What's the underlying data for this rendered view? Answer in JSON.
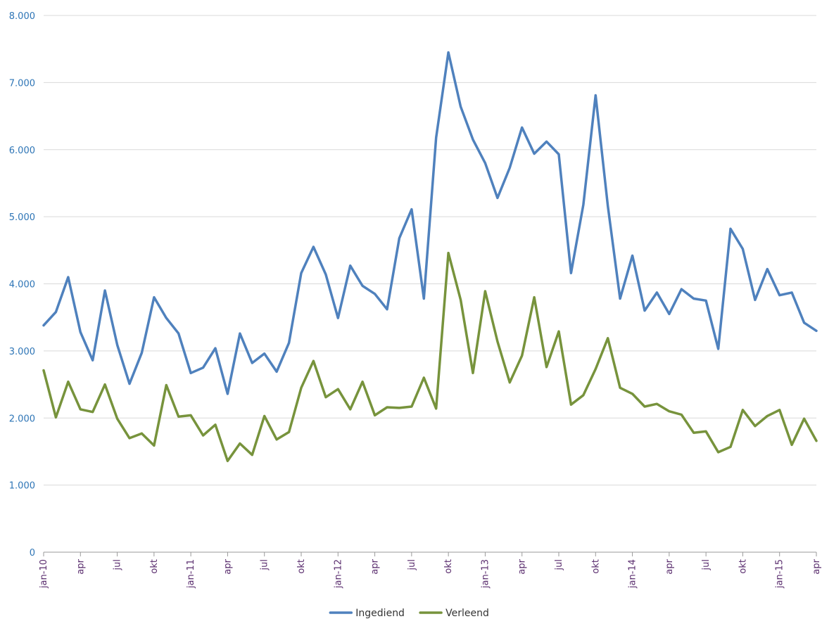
{
  "chart_data": {
    "type": "line",
    "title": "",
    "xlabel": "",
    "ylabel": "",
    "ylim": [
      0,
      8000
    ],
    "yticks": [
      0,
      1000,
      2000,
      3000,
      4000,
      5000,
      6000,
      7000,
      8000
    ],
    "ytick_labels": [
      "0",
      "1.000",
      "2.000",
      "3.000",
      "4.000",
      "5.000",
      "6.000",
      "7.000",
      "8.000"
    ],
    "categories": [
      "jan-10",
      "feb-10",
      "mrt-10",
      "apr-10",
      "mei-10",
      "jun-10",
      "jul-10",
      "aug-10",
      "sep-10",
      "okt-10",
      "nov-10",
      "dec-10",
      "jan-11",
      "feb-11",
      "mrt-11",
      "apr-11",
      "mei-11",
      "jun-11",
      "jul-11",
      "aug-11",
      "sep-11",
      "okt-11",
      "nov-11",
      "dec-11",
      "jan-12",
      "feb-12",
      "mrt-12",
      "apr-12",
      "mei-12",
      "jun-12",
      "jul-12",
      "aug-12",
      "sep-12",
      "okt-12",
      "nov-12",
      "dec-12",
      "jan-13",
      "feb-13",
      "mrt-13",
      "apr-13",
      "mei-13",
      "jun-13",
      "jul-13",
      "aug-13",
      "sep-13",
      "okt-13",
      "nov-13",
      "dec-13",
      "jan-14",
      "feb-14",
      "mrt-14",
      "apr-14",
      "mei-14",
      "jun-14",
      "jul-14",
      "aug-14",
      "sep-14",
      "okt-14",
      "nov-14",
      "dec-14",
      "jan-15",
      "feb-15",
      "mrt-15",
      "apr-15"
    ],
    "x_tick_labels": [
      {
        "index": 0,
        "label": "jan-10"
      },
      {
        "index": 3,
        "label": "apr"
      },
      {
        "index": 6,
        "label": "jul"
      },
      {
        "index": 9,
        "label": "okt"
      },
      {
        "index": 12,
        "label": "jan-11"
      },
      {
        "index": 15,
        "label": "apr"
      },
      {
        "index": 18,
        "label": "jul"
      },
      {
        "index": 21,
        "label": "okt"
      },
      {
        "index": 24,
        "label": "jan-12"
      },
      {
        "index": 27,
        "label": "apr"
      },
      {
        "index": 30,
        "label": "jul"
      },
      {
        "index": 33,
        "label": "okt"
      },
      {
        "index": 36,
        "label": "jan-13"
      },
      {
        "index": 39,
        "label": "apr"
      },
      {
        "index": 42,
        "label": "jul"
      },
      {
        "index": 45,
        "label": "okt"
      },
      {
        "index": 48,
        "label": "jan-14"
      },
      {
        "index": 51,
        "label": "apr"
      },
      {
        "index": 54,
        "label": "jul"
      },
      {
        "index": 57,
        "label": "okt"
      },
      {
        "index": 60,
        "label": "jan-15"
      },
      {
        "index": 63,
        "label": "apr"
      }
    ],
    "series": [
      {
        "name": "Ingediend",
        "color": "#4f81bd",
        "values": [
          3380,
          3580,
          4100,
          3280,
          2860,
          3900,
          3090,
          2510,
          2970,
          3800,
          3490,
          3260,
          2670,
          2750,
          3040,
          2360,
          3260,
          2820,
          2960,
          2690,
          3120,
          4160,
          4550,
          4140,
          3490,
          4270,
          3970,
          3850,
          3620,
          4680,
          5110,
          3780,
          6180,
          7450,
          6640,
          6150,
          5800,
          5280,
          5730,
          6330,
          5940,
          6120,
          5930,
          4160,
          5180,
          6810,
          5160,
          3780,
          4420,
          3600,
          3870,
          3550,
          3920,
          3780,
          3750,
          3030,
          4820,
          4520,
          3760,
          4220,
          3830,
          3870,
          3420,
          3300
        ]
      },
      {
        "name": "Verleend",
        "color": "#77933c",
        "values": [
          2710,
          2010,
          2540,
          2130,
          2090,
          2500,
          1990,
          1700,
          1770,
          1590,
          2490,
          2020,
          2040,
          1740,
          1900,
          1360,
          1620,
          1450,
          2030,
          1680,
          1790,
          2450,
          2850,
          2310,
          2430,
          2130,
          2540,
          2040,
          2160,
          2150,
          2170,
          2600,
          2140,
          4460,
          3760,
          2670,
          3890,
          3140,
          2530,
          2930,
          3800,
          2760,
          3290,
          2200,
          2340,
          2730,
          3190,
          2450,
          2360,
          2170,
          2210,
          2100,
          2050,
          1780,
          1800,
          1490,
          1570,
          2120,
          1880,
          2030,
          2120,
          1600,
          1990,
          1660
        ]
      }
    ],
    "legend_position": "bottom-center",
    "grid": true
  }
}
